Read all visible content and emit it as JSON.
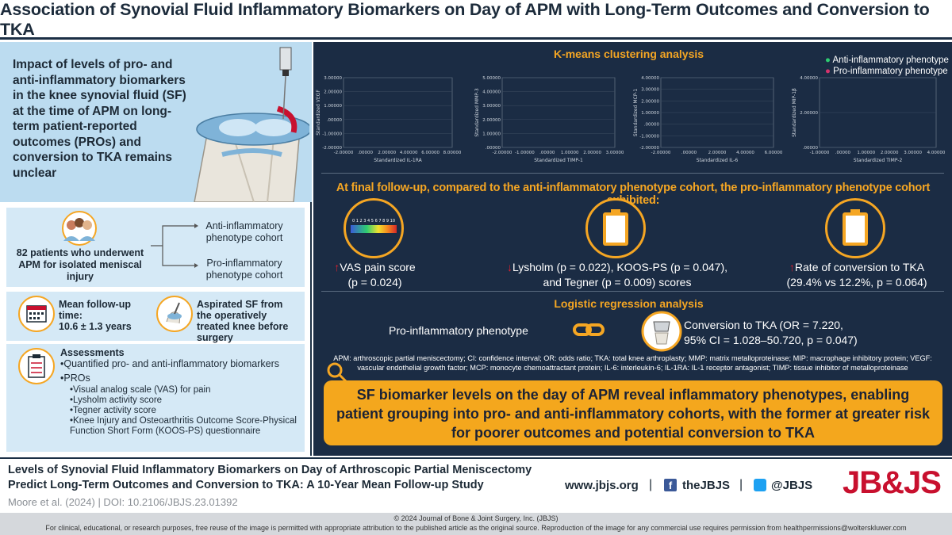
{
  "header": {
    "title": "Association of Synovial Fluid Inflammatory Biomarkers on Day of APM with Long-Term Outcomes and Conversion to TKA"
  },
  "intro": {
    "text": "Impact of levels of pro- and anti-inflammatory biomarkers in the knee synovial fluid (SF) at the time of APM on long-term patient-reported outcomes (PROs) and conversion to TKA remains unclear"
  },
  "patients": {
    "text": "82 patients who underwent APM for isolated meniscal injury",
    "anti_cohort": "Anti-inflammatory phenotype cohort",
    "pro_cohort": "Pro-inflammatory phenotype cohort"
  },
  "followup": {
    "label": "Mean follow-up time:",
    "value": "10.6 ± 1.3 years"
  },
  "aspirated": {
    "text": "Aspirated SF from the operatively treated knee before surgery"
  },
  "assessments": {
    "title": "Assessments",
    "items": [
      "•Quantified pro- and anti-inflammatory biomarkers",
      "•PROs"
    ],
    "subitems": [
      "•Visual analog scale (VAS) for pain",
      "•Lysholm activity score",
      "•Tegner activity score",
      "•Knee Injury and Osteoarthritis Outcome Score-Physical Function Short Form (KOOS-PS) questionnaire"
    ]
  },
  "clustering": {
    "title": "K-means clustering analysis",
    "legend": [
      "Anti-inflammatory phenotype",
      "Pro-inflammatory phenotype"
    ],
    "colors": {
      "anti": "#2ecc71",
      "pro": "#d6336c"
    }
  },
  "chart_data": [
    {
      "type": "scatter",
      "xlabel": "Standardized IL-1RA",
      "ylabel": "Standardized VEGF",
      "xticks": [
        "-2.00000",
        ".00000",
        "2.00000",
        "4.00000",
        "6.00000",
        "8.00000"
      ],
      "yticks": [
        "3.00000",
        "2.00000",
        "1.00000",
        ".00000",
        "-1.00000",
        "-2.00000"
      ],
      "xlim": [
        -2,
        8
      ],
      "ylim": [
        -2,
        3
      ]
    },
    {
      "type": "scatter",
      "xlabel": "Standardized TIMP-1",
      "ylabel": "Standardized MMP-3",
      "xticks": [
        "-2.00000",
        "-1.00000",
        ".00000",
        "1.00000",
        "2.00000",
        "3.00000"
      ],
      "yticks": [
        "5.00000",
        "4.00000",
        "3.00000",
        "2.00000",
        "1.00000",
        ".00000"
      ],
      "xlim": [
        -2,
        3
      ],
      "ylim": [
        -1,
        5
      ]
    },
    {
      "type": "scatter",
      "xlabel": "Standardized IL-6",
      "ylabel": "Standardized MCP-1",
      "xticks": [
        "-2.00000",
        ".00000",
        "2.00000",
        "4.00000",
        "6.00000"
      ],
      "yticks": [
        "4.00000",
        "3.00000",
        "2.00000",
        "1.00000",
        ".00000",
        "-1.00000",
        "-2.00000"
      ],
      "xlim": [
        -2,
        6
      ],
      "ylim": [
        -2,
        4
      ]
    },
    {
      "type": "scatter",
      "xlabel": "Standardized TIMP-2",
      "ylabel": "Standardized MIP-1β",
      "xticks": [
        "-1.00000",
        ".00000",
        "1.00000",
        "2.00000",
        "3.00000",
        "4.00000"
      ],
      "yticks": [
        "4.00000",
        "2.00000",
        ".00000"
      ],
      "xlim": [
        -1,
        4
      ],
      "ylim": [
        -1,
        5
      ]
    }
  ],
  "followup_results": {
    "heading": "At final follow-up, compared to the anti-inflammatory phenotype cohort, the pro-inflammatory phenotype cohort exhibited:",
    "vas": {
      "arrow": "↑",
      "line1": "VAS pain score",
      "line2": "(p = 0.024)"
    },
    "lysholm": {
      "arrow": "↓",
      "line1": "Lysholm (p = 0.022), KOOS-PS (p = 0.047),",
      "line2": "and Tegner (p = 0.009) scores"
    },
    "tka": {
      "arrow": "↑",
      "line1": "Rate of conversion to TKA",
      "line2": "(29.4% vs 12.2%, p = 0.064)"
    },
    "vas_scale": "0 1 2 3 4 5 6 7 8 9 10"
  },
  "regression": {
    "title": "Logistic regression analysis",
    "left": "Pro-inflammatory phenotype",
    "right1": "Conversion to TKA (OR = 7.220,",
    "right2": "95% CI = 1.028–50.720, p = 0.047)"
  },
  "abbreviations": "APM: arthroscopic partial meniscectomy; CI: confidence interval; OR: odds ratio; TKA: total knee arthroplasty; MMP: matrix metalloproteinase; MIP: macrophage inhibitory protein; VEGF: vascular endothelial growth factor; MCP: monocyte chemoattractant protein; IL-6: interleukin-6; IL-1RA: IL-1 receptor antagonist; TIMP: tissue inhibitor of metalloproteinase",
  "key_message": "SF biomarker levels on the day of APM reveal inflammatory phenotypes, enabling patient grouping into pro- and anti-inflammatory cohorts, with the former at greater risk for poorer outcomes and potential conversion to TKA",
  "footer": {
    "article_title_1": "Levels of Synovial Fluid Inflammatory Biomarkers on Day of Arthroscopic Partial Meniscectomy",
    "article_title_2": "Predict Long-Term Outcomes and Conversion to TKA: A 10-Year Mean Follow-up Study",
    "citation": "Moore et al. (2024) | DOI: 10.2106/JBJS.23.01392",
    "website": "www.jbjs.org",
    "sep": "|",
    "facebook": "theJBJS",
    "twitter": "@JBJS",
    "logo": "JB&JS"
  },
  "copyright": {
    "line1": "© 2024 Journal of Bone & Joint Surgery, Inc. (JBJS)",
    "line2": "For clinical, educational, or research purposes, free reuse of the image is permitted with appropriate attribution to the published article as the original source. Reproduction of the image for any commercial use requires permission from healthpermissions@wolterskluwer.com"
  }
}
